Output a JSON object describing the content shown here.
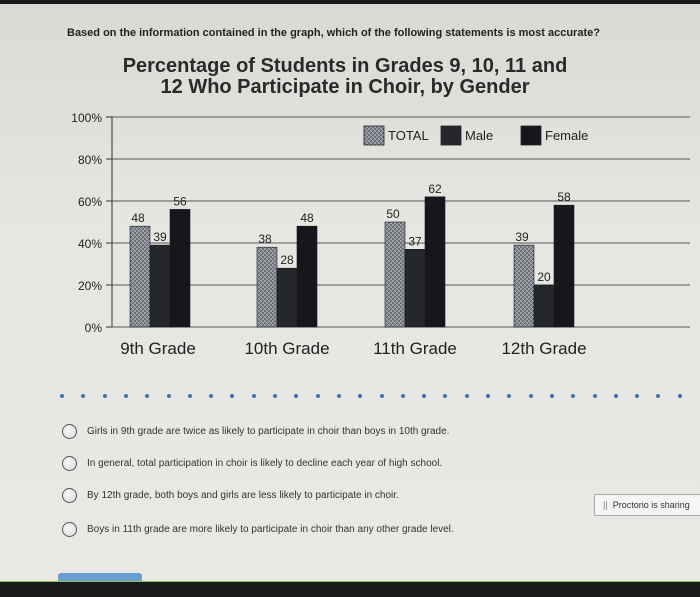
{
  "question": "Based on the information contained in the graph, which of the following statements is most accurate?",
  "chart_data": {
    "type": "bar",
    "title_line1": "Percentage of Students in Grades 9, 10, 11 and",
    "title_line2": "12 Who Participate in Choir, by Gender",
    "categories": [
      "9th Grade",
      "10th Grade",
      "11th Grade",
      "12th Grade"
    ],
    "series": [
      {
        "name": "TOTAL",
        "values": [
          48,
          38,
          50,
          39
        ],
        "color": "#8a8f96"
      },
      {
        "name": "Male",
        "values": [
          39,
          28,
          37,
          20
        ],
        "color": "#26272b"
      },
      {
        "name": "Female",
        "values": [
          56,
          48,
          62,
          58
        ],
        "color": "#15171c"
      }
    ],
    "y_ticks": [
      "0%",
      "20%",
      "40%",
      "60%",
      "80%",
      "100%"
    ],
    "ylim": [
      0,
      100
    ],
    "grid": true,
    "legend_position": "top-right"
  },
  "options": [
    "Girls in 9th grade are twice as likely to participate in choir than boys in 10th grade.",
    "In general, total participation in choir is likely to decline each year of high school.",
    "By 12th grade, both boys and girls are less likely to participate in choir.",
    "Boys in 11th grade are more likely to participate in choir than any other grade level."
  ],
  "proctor_badge": "Proctorio is sharing",
  "colors": {
    "bottom_strip": "#8fbf55",
    "dot_accent": "#4a6fa0"
  }
}
